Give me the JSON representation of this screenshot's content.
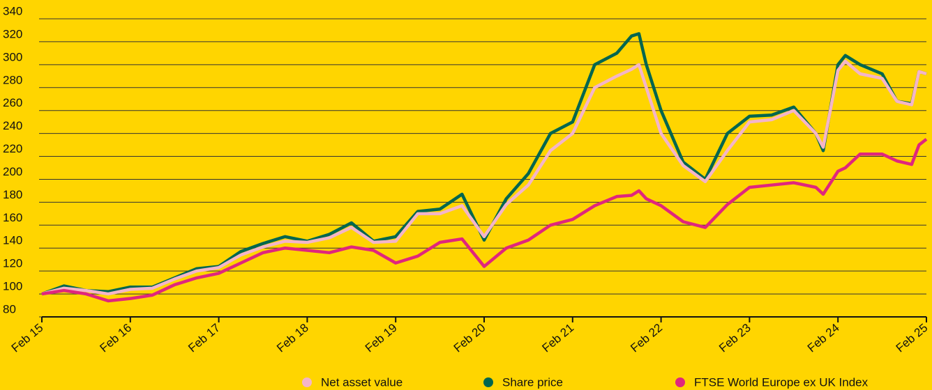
{
  "chart_data": {
    "type": "line",
    "x": [
      0,
      3,
      6,
      9,
      12,
      15,
      18,
      21,
      24,
      27,
      30,
      33,
      36,
      39,
      42,
      45,
      48,
      51,
      54,
      57,
      60,
      63,
      66,
      69,
      72,
      75,
      78,
      80,
      81,
      82,
      84,
      87,
      90,
      93,
      96,
      99,
      102,
      105,
      106,
      108,
      109,
      111,
      114,
      116,
      118,
      119,
      120
    ],
    "series": [
      {
        "name": "Share price",
        "color": "#00664f",
        "values": [
          100,
          107,
          103,
          102,
          106,
          106,
          114,
          122,
          124,
          137,
          144,
          150,
          146,
          152,
          162,
          146,
          150,
          172,
          174,
          187,
          147,
          183,
          205,
          240,
          250,
          300,
          310,
          325,
          327,
          300,
          260,
          215,
          200,
          240,
          255,
          256,
          263,
          240,
          225,
          300,
          308,
          300,
          292,
          268,
          266,
          294,
          292
        ]
      },
      {
        "name": "Net asset value",
        "color": "#f4b5c8",
        "values": [
          100,
          105,
          103,
          100,
          104,
          105,
          113,
          120,
          123,
          134,
          141,
          146,
          145,
          149,
          158,
          145,
          146,
          170,
          170,
          177,
          150,
          178,
          195,
          225,
          240,
          280,
          290,
          296,
          300,
          280,
          240,
          212,
          198,
          225,
          250,
          252,
          260,
          240,
          228,
          295,
          303,
          292,
          288,
          268,
          265,
          294,
          292
        ]
      },
      {
        "name": "FTSE World Europe ex UK Index",
        "color": "#e0267d",
        "values": [
          100,
          103,
          100,
          94,
          96,
          99,
          108,
          114,
          118,
          127,
          136,
          140,
          138,
          136,
          141,
          138,
          127,
          133,
          145,
          148,
          124,
          140,
          147,
          160,
          165,
          177,
          185,
          186,
          190,
          183,
          177,
          163,
          158,
          178,
          193,
          195,
          197,
          193,
          187,
          207,
          210,
          222,
          222,
          216,
          213,
          230,
          235
        ]
      }
    ],
    "legend_order": [
      1,
      0,
      2
    ],
    "xlim": [
      0,
      120
    ],
    "xticks": [
      {
        "value": 0,
        "label": "Feb 15"
      },
      {
        "value": 12,
        "label": "Feb 16"
      },
      {
        "value": 24,
        "label": "Feb 17"
      },
      {
        "value": 36,
        "label": "Feb 18"
      },
      {
        "value": 48,
        "label": "Feb 19"
      },
      {
        "value": 60,
        "label": "Feb 20"
      },
      {
        "value": 72,
        "label": "Feb 21"
      },
      {
        "value": 84,
        "label": "Feb 22"
      },
      {
        "value": 96,
        "label": "Feb 23"
      },
      {
        "value": 108,
        "label": "Feb 24"
      },
      {
        "value": 120,
        "label": "Feb 25"
      }
    ],
    "ylim": [
      80,
      340
    ],
    "yticks": [
      80,
      100,
      120,
      140,
      160,
      180,
      200,
      220,
      240,
      260,
      280,
      300,
      320,
      340
    ],
    "grid": true,
    "legend": "bottom"
  }
}
